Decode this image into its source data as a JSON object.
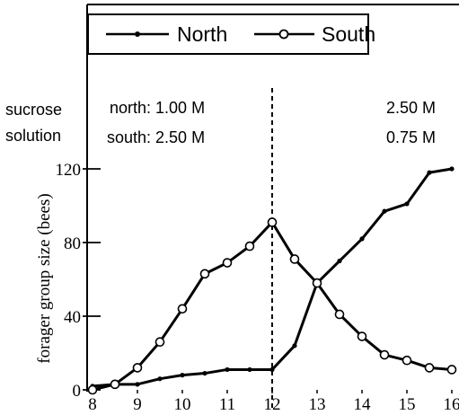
{
  "chart_data": {
    "type": "line",
    "ylabel": "forager group size (bees)",
    "xlim": [
      8,
      16
    ],
    "ylim": [
      0,
      120
    ],
    "xticks": [
      "8",
      "9",
      "10",
      "11",
      "12",
      "13",
      "14",
      "15",
      "16"
    ],
    "yticks": [
      "0",
      "40",
      "80",
      "120"
    ],
    "legend": {
      "position": "top",
      "items": [
        "North",
        "South"
      ]
    },
    "annotations": {
      "sucrose_line1": "sucrose",
      "sucrose_line2": "solution",
      "left_north": "north: 1.00 M",
      "left_south": "south: 2.50 M",
      "right_north": "2.50 M",
      "right_south": "0.75 M"
    },
    "divider_x": 12,
    "series": [
      {
        "name": "North",
        "marker": "filled-dot",
        "x": [
          8,
          8.5,
          9,
          9.5,
          10,
          10.5,
          11,
          11.5,
          12,
          12.5,
          13,
          13.5,
          14,
          14.5,
          15,
          15.5,
          16
        ],
        "y": [
          2,
          3,
          3,
          6,
          8,
          9,
          11,
          11,
          11,
          24,
          58,
          70,
          82,
          97,
          101,
          118,
          120
        ]
      },
      {
        "name": "South",
        "marker": "open-circle",
        "x": [
          8,
          8.5,
          9,
          9.5,
          10,
          10.5,
          11,
          11.5,
          12,
          12.5,
          13,
          13.5,
          14,
          14.5,
          15,
          15.5,
          16
        ],
        "y": [
          0,
          3,
          12,
          26,
          44,
          63,
          69,
          78,
          91,
          71,
          58,
          41,
          29,
          19,
          16,
          12,
          11
        ]
      }
    ]
  }
}
